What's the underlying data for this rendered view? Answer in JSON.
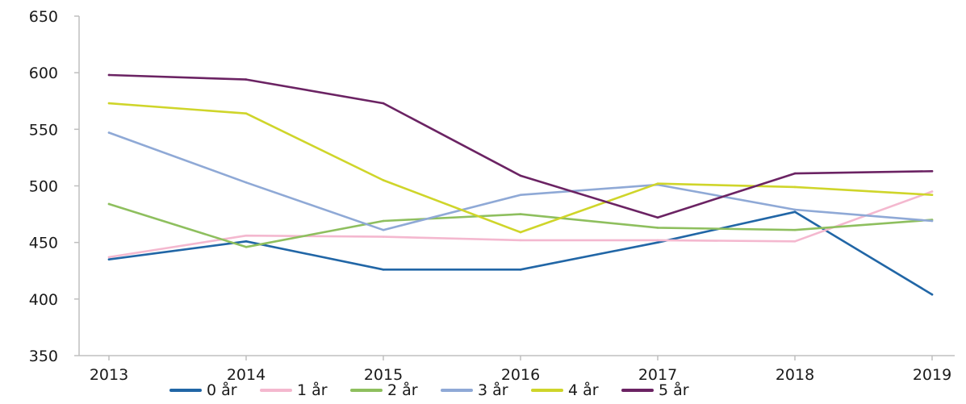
{
  "chart_data": {
    "type": "line",
    "title": "",
    "xlabel": "",
    "ylabel": "",
    "categories": [
      "2013",
      "2014",
      "2015",
      "2016",
      "2017",
      "2018",
      "2019"
    ],
    "ylim": [
      350,
      650
    ],
    "yticks": [
      350,
      400,
      450,
      500,
      550,
      600,
      650
    ],
    "grid": false,
    "legend_position": "bottom",
    "series": [
      {
        "name": "0 år",
        "color": "#2166a6",
        "values": [
          435,
          451,
          426,
          426,
          450,
          477,
          404
        ]
      },
      {
        "name": "1 år",
        "color": "#f4b8cf",
        "values": [
          437,
          456,
          455,
          452,
          452,
          451,
          495
        ]
      },
      {
        "name": "2 år",
        "color": "#8ebf5e",
        "values": [
          484,
          446,
          469,
          475,
          463,
          461,
          470
        ]
      },
      {
        "name": "3 år",
        "color": "#8fa9d6",
        "values": [
          547,
          503,
          461,
          492,
          501,
          479,
          469
        ]
      },
      {
        "name": "4 år",
        "color": "#cfd52a",
        "values": [
          573,
          564,
          505,
          459,
          502,
          499,
          492
        ]
      },
      {
        "name": "5 år",
        "color": "#6b2363",
        "values": [
          598,
          594,
          573,
          509,
          472,
          511,
          513
        ]
      }
    ]
  }
}
